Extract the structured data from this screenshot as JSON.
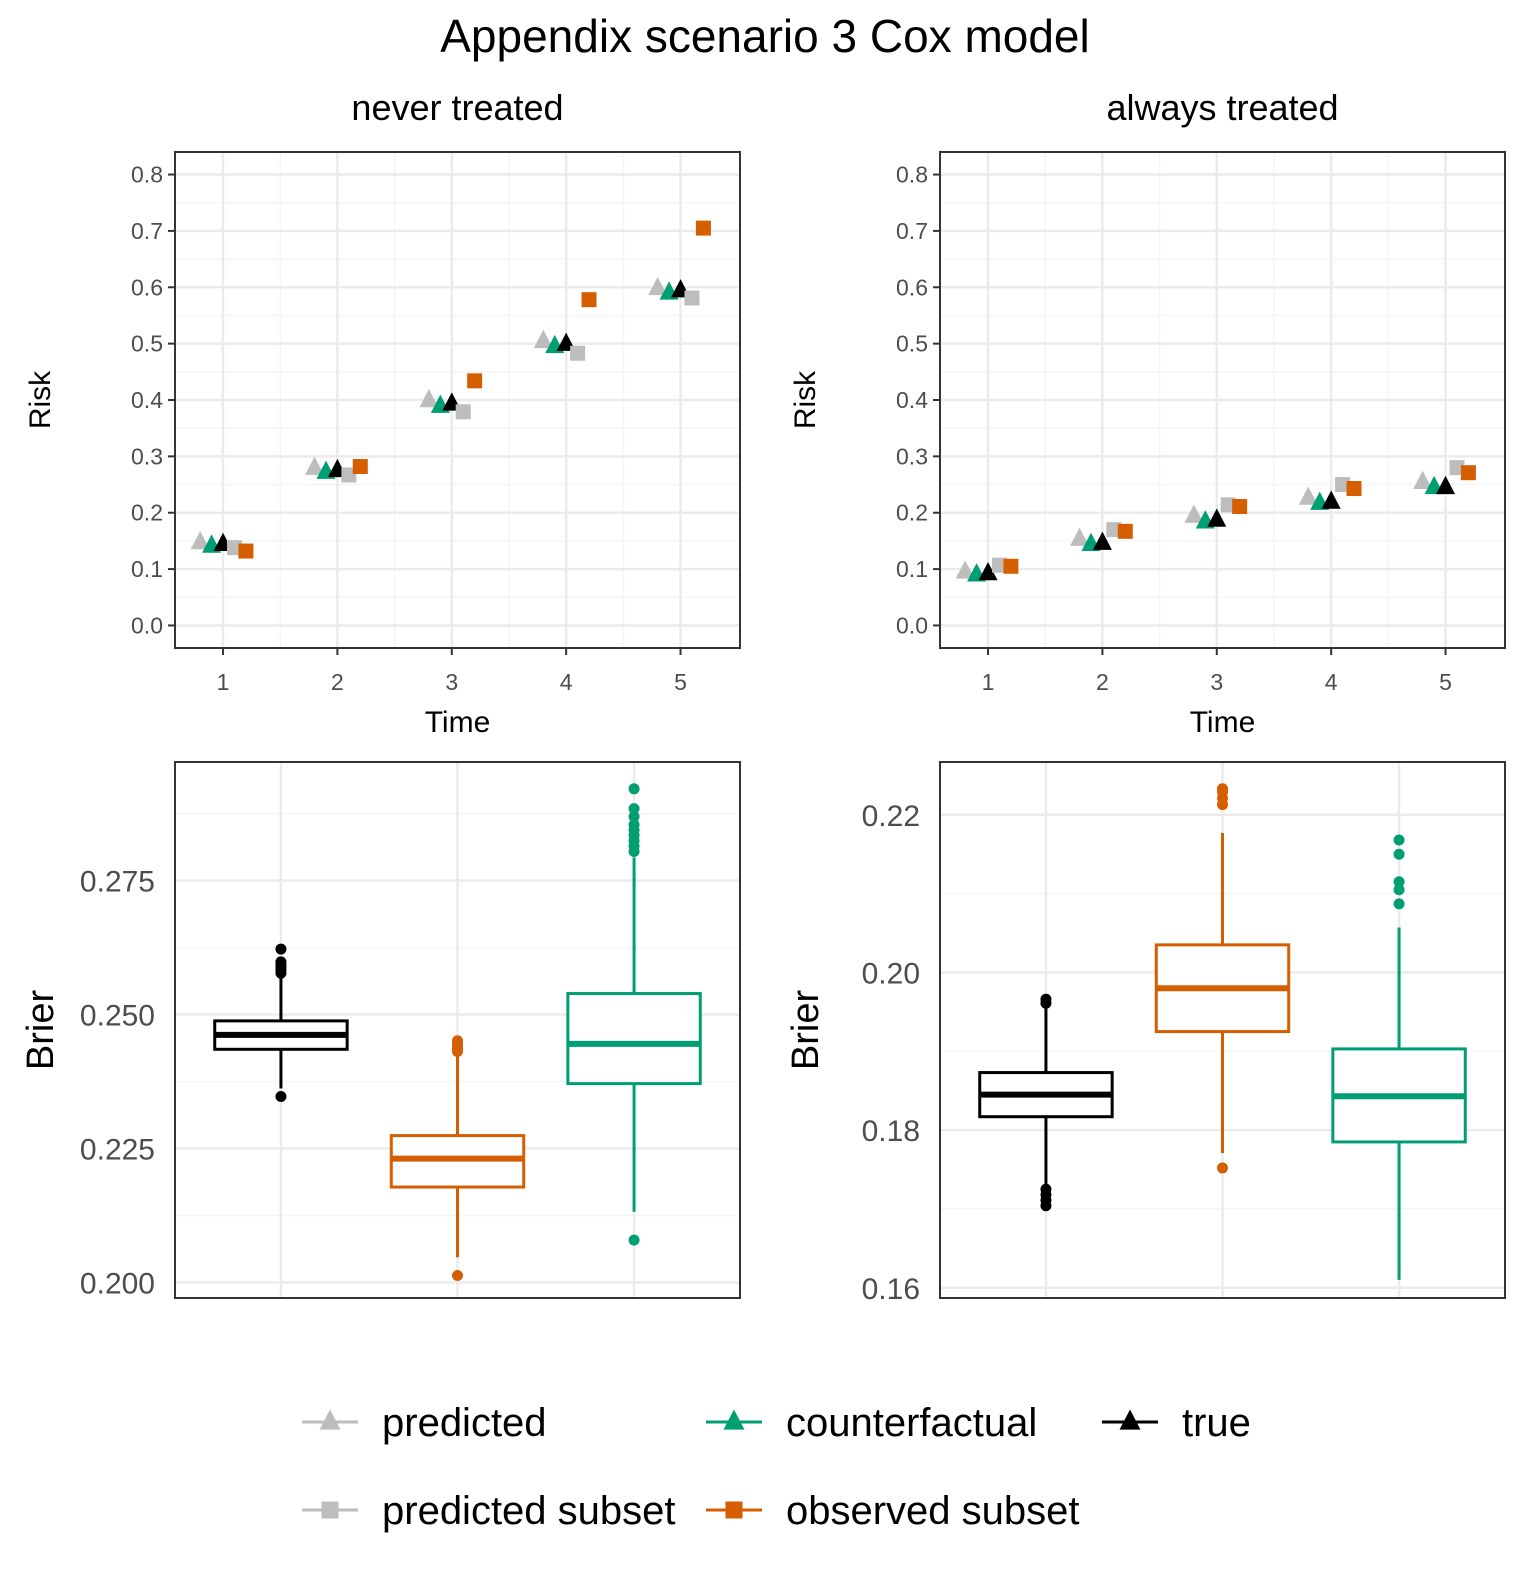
{
  "title": "Appendix scenario 3 Cox model",
  "colors": {
    "predicted": "#bdbdbd",
    "predicted_subset": "#bdbdbd",
    "counterfactual": "#009e73",
    "observed_subset": "#d55e00",
    "true": "#000000",
    "grid_major": "#ebebeb",
    "grid_minor": "#f5f5f5",
    "panel_border": "#333333"
  },
  "legend": {
    "position": "bottom",
    "items": [
      {
        "key": "predicted",
        "label": "predicted",
        "shape": "triangle",
        "color": "#bdbdbd"
      },
      {
        "key": "counterfactual",
        "label": "counterfactual",
        "shape": "triangle",
        "color": "#009e73"
      },
      {
        "key": "true",
        "label": "true",
        "shape": "triangle",
        "color": "#000000"
      },
      {
        "key": "predicted_subset",
        "label": "predicted subset",
        "shape": "square",
        "color": "#bdbdbd"
      },
      {
        "key": "observed_subset",
        "label": "observed subset",
        "shape": "square",
        "color": "#d55e00"
      }
    ]
  },
  "chart_data": [
    {
      "type": "scatter",
      "id": "risk_never",
      "title": "never treated",
      "xlabel": "Time",
      "ylabel": "Risk",
      "x": [
        1,
        2,
        3,
        4,
        5
      ],
      "xlim": [
        0.58,
        5.52
      ],
      "ylim": [
        -0.04,
        0.84
      ],
      "yticks": [
        0.0,
        0.1,
        0.2,
        0.3,
        0.4,
        0.5,
        0.6,
        0.7,
        0.8
      ],
      "ytick_labels": [
        "0.0",
        "0.1",
        "0.2",
        "0.3",
        "0.4",
        "0.5",
        "0.6",
        "0.7",
        "0.8"
      ],
      "xtick_labels": [
        "1",
        "2",
        "3",
        "4",
        "5"
      ],
      "series": [
        {
          "key": "predicted",
          "name": "predicted",
          "offset": -0.2,
          "values": [
            0.149,
            0.281,
            0.401,
            0.506,
            0.6
          ]
        },
        {
          "key": "counterfactual",
          "name": "counterfactual",
          "offset": -0.1,
          "values": [
            0.143,
            0.274,
            0.391,
            0.497,
            0.592
          ]
        },
        {
          "key": "true",
          "name": "true",
          "offset": 0.0,
          "values": [
            0.146,
            0.277,
            0.395,
            0.501,
            0.596
          ]
        },
        {
          "key": "predicted_subset",
          "name": "predicted subset",
          "offset": 0.1,
          "values": [
            0.138,
            0.267,
            0.379,
            0.483,
            0.581
          ]
        },
        {
          "key": "observed_subset",
          "name": "observed subset",
          "offset": 0.2,
          "values": [
            0.132,
            0.282,
            0.434,
            0.578,
            0.705
          ]
        }
      ]
    },
    {
      "type": "scatter",
      "id": "risk_always",
      "title": "always treated",
      "xlabel": "Time",
      "ylabel": "Risk",
      "x": [
        1,
        2,
        3,
        4,
        5
      ],
      "xlim": [
        0.58,
        5.52
      ],
      "ylim": [
        -0.04,
        0.84
      ],
      "yticks": [
        0.0,
        0.1,
        0.2,
        0.3,
        0.4,
        0.5,
        0.6,
        0.7,
        0.8
      ],
      "ytick_labels": [
        "0.0",
        "0.1",
        "0.2",
        "0.3",
        "0.4",
        "0.5",
        "0.6",
        "0.7",
        "0.8"
      ],
      "xtick_labels": [
        "1",
        "2",
        "3",
        "4",
        "5"
      ],
      "series": [
        {
          "key": "predicted",
          "name": "predicted",
          "offset": -0.2,
          "values": [
            0.097,
            0.155,
            0.196,
            0.228,
            0.256
          ]
        },
        {
          "key": "counterfactual",
          "name": "counterfactual",
          "offset": -0.1,
          "values": [
            0.092,
            0.146,
            0.186,
            0.219,
            0.247
          ]
        },
        {
          "key": "true",
          "name": "true",
          "offset": 0.0,
          "values": [
            0.094,
            0.148,
            0.189,
            0.221,
            0.247
          ]
        },
        {
          "key": "predicted_subset",
          "name": "predicted subset",
          "offset": 0.1,
          "values": [
            0.107,
            0.17,
            0.214,
            0.25,
            0.28
          ]
        },
        {
          "key": "observed_subset",
          "name": "observed subset",
          "offset": 0.2,
          "values": [
            0.105,
            0.167,
            0.211,
            0.243,
            0.271
          ]
        }
      ]
    },
    {
      "type": "box",
      "id": "brier_never",
      "ylabel": "Brier",
      "ylim": [
        0.1971,
        0.2971
      ],
      "yticks": [
        0.2,
        0.225,
        0.25,
        0.275
      ],
      "ytick_labels": [
        "0.200",
        "0.225",
        "0.250",
        "0.275"
      ],
      "boxes": [
        {
          "key": "true",
          "color": "#000000",
          "q1": 0.2435,
          "median": 0.2462,
          "q3": 0.2488,
          "whisker_low": 0.2362,
          "whisker_high": 0.2572,
          "outliers": [
            0.2347,
            0.2577,
            0.2583,
            0.2588,
            0.2593,
            0.2598,
            0.2622
          ]
        },
        {
          "key": "observed_subset",
          "color": "#d55e00",
          "q1": 0.2178,
          "median": 0.2231,
          "q3": 0.2274,
          "whisker_low": 0.2047,
          "whisker_high": 0.2428,
          "outliers": [
            0.2013,
            0.2431,
            0.2436,
            0.2441,
            0.2446,
            0.2451
          ]
        },
        {
          "key": "counterfactual",
          "color": "#009e73",
          "q1": 0.2371,
          "median": 0.2445,
          "q3": 0.2539,
          "whisker_low": 0.2132,
          "whisker_high": 0.2793,
          "outliers": [
            0.2079,
            0.2804,
            0.2814,
            0.2824,
            0.2834,
            0.2844,
            0.2854,
            0.2869,
            0.2884,
            0.2921
          ]
        }
      ]
    },
    {
      "type": "box",
      "id": "brier_always",
      "ylabel": "Brier",
      "ylim": [
        0.1587,
        0.2267
      ],
      "yticks": [
        0.16,
        0.18,
        0.2,
        0.22
      ],
      "ytick_labels": [
        "0.16",
        "0.18",
        "0.20",
        "0.22"
      ],
      "boxes": [
        {
          "key": "true",
          "color": "#000000",
          "q1": 0.1817,
          "median": 0.1845,
          "q3": 0.1873,
          "whisker_low": 0.1727,
          "whisker_high": 0.1958,
          "outliers": [
            0.1704,
            0.1711,
            0.1718,
            0.1725,
            0.1961,
            0.1966
          ]
        },
        {
          "key": "observed_subset",
          "color": "#d55e00",
          "q1": 0.1925,
          "median": 0.198,
          "q3": 0.2035,
          "whisker_low": 0.1771,
          "whisker_high": 0.2177,
          "outliers": [
            0.1752,
            0.2213,
            0.2221,
            0.2229,
            0.2233
          ]
        },
        {
          "key": "counterfactual",
          "color": "#009e73",
          "q1": 0.1785,
          "median": 0.1843,
          "q3": 0.1903,
          "whisker_low": 0.161,
          "whisker_high": 0.2057,
          "outliers": [
            0.2087,
            0.2105,
            0.2115,
            0.215,
            0.2168
          ]
        }
      ]
    }
  ]
}
